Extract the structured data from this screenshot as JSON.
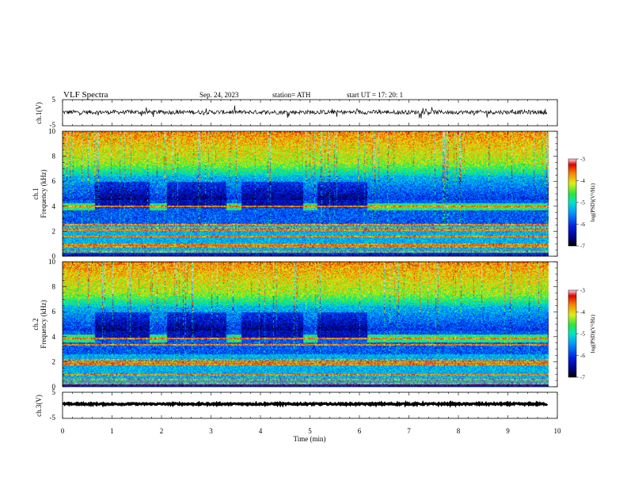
{
  "header": {
    "title": "VLF  Spectra",
    "date": "Sep. 24, 2023",
    "station": "station= ATH",
    "start": "start  UT  =    17: 20: 1"
  },
  "chart_data": {
    "type": "heatmap",
    "x_axis": {
      "label": "Time  (min)",
      "range": [
        0,
        10
      ],
      "ticks": [
        "0",
        "1",
        "2",
        "3",
        "4",
        "5",
        "6",
        "7",
        "8",
        "9",
        "10"
      ],
      "data_end_min": 9.8
    },
    "panels": [
      {
        "id": "ch1-waveform",
        "type": "line",
        "ylabel": "ch.1(V)",
        "ylim": [
          -5,
          5
        ],
        "yticks": [
          "5",
          "-5"
        ],
        "trace_center": 0.2,
        "trace_noise": 0.8
      },
      {
        "id": "ch1-spectrogram",
        "type": "heatmap",
        "ylabel": "ch.1\nFrequency  (kHz)",
        "ylim": [
          0,
          10
        ],
        "yticks": [
          "0",
          "2",
          "4",
          "6",
          "8",
          "10"
        ],
        "colorbar": {
          "label": "log(PSD)(V²/Hz)",
          "range": [
            -7,
            -3
          ],
          "ticks": [
            "-3",
            "-4",
            "-5",
            "-6",
            "-7"
          ]
        },
        "tx_band_khz": [
          3.7,
          4.3
        ],
        "tx_interval_starts_min": [
          0.0,
          1.75,
          3.3,
          4.85,
          6.15
        ],
        "tx_interval_ends_min": [
          0.65,
          2.1,
          3.6,
          5.15,
          9.8
        ],
        "band_lines_khz": [
          0.4,
          0.8,
          1.0,
          1.6,
          2.1,
          2.3,
          2.55,
          4.0
        ]
      },
      {
        "id": "ch2-spectrogram",
        "type": "heatmap",
        "ylabel": "ch.2\nFrequency  (kHz)",
        "ylim": [
          0,
          10
        ],
        "yticks": [
          "0",
          "2",
          "4",
          "6",
          "8",
          "10"
        ],
        "colorbar": {
          "label": "log(PSD)(V²/Hz)",
          "range": [
            -7,
            -3
          ],
          "ticks": [
            "-3",
            "-4",
            "-5",
            "-6",
            "-7"
          ]
        },
        "tx_band_khz": [
          3.6,
          4.2
        ],
        "tx_interval_starts_min": [
          0.0,
          1.75,
          3.3,
          4.85,
          6.15
        ],
        "tx_interval_ends_min": [
          0.65,
          2.1,
          3.6,
          5.15,
          9.8
        ],
        "band_lines_khz": [
          0.3,
          0.6,
          1.0,
          1.8,
          2.0,
          2.2,
          3.4,
          3.9
        ]
      },
      {
        "id": "ch3-waveform",
        "type": "line",
        "ylabel": "ch.3(V)",
        "ylim": [
          -5,
          5
        ],
        "yticks": [
          "5",
          "-5"
        ],
        "trace_center": 0.5,
        "trace_noise": 0.3
      }
    ]
  }
}
